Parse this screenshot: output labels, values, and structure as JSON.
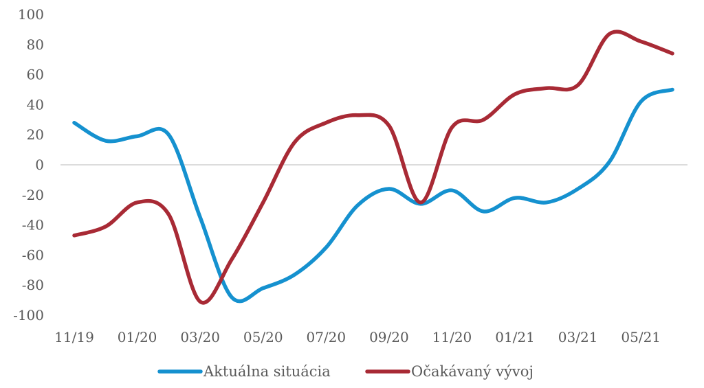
{
  "chart_data": {
    "type": "line",
    "title": "",
    "xlabel": "",
    "ylabel": "",
    "ylim": [
      -100,
      100
    ],
    "yticks": [
      100,
      80,
      60,
      40,
      20,
      0,
      -20,
      -40,
      -60,
      -80,
      -100
    ],
    "x": [
      "11/19",
      "12/19",
      "01/20",
      "02/20",
      "03/20",
      "04/20",
      "05/20",
      "06/20",
      "07/20",
      "08/20",
      "09/20",
      "10/20",
      "11/20",
      "12/20",
      "01/21",
      "02/21",
      "03/21",
      "04/21",
      "05/21",
      "06/21"
    ],
    "xtick_labels": [
      "11/19",
      "01/20",
      "03/20",
      "05/20",
      "07/20",
      "09/20",
      "11/20",
      "01/21",
      "03/21",
      "05/21"
    ],
    "legend_position": "bottom",
    "grid": false,
    "series": [
      {
        "name": "Aktuálna situácia",
        "color": "#1591cf",
        "values": [
          28,
          16,
          19,
          20,
          -35,
          -88,
          -82,
          -73,
          -55,
          -27,
          -16,
          -26,
          -17,
          -31,
          -22,
          -25,
          -16,
          2,
          42,
          50
        ]
      },
      {
        "name": "Očakávaný vývoj",
        "color": "#a82a35",
        "values": [
          -47,
          -41,
          -25,
          -33,
          -91,
          -63,
          -25,
          15,
          28,
          33,
          26,
          -25,
          25,
          30,
          47,
          51,
          53,
          87,
          82,
          74
        ]
      }
    ]
  }
}
